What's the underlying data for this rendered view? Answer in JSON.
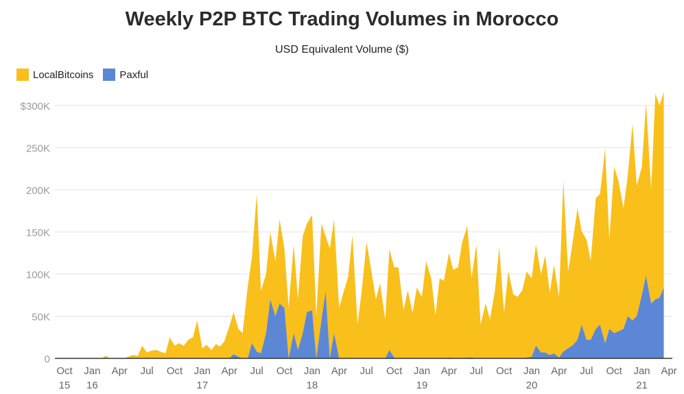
{
  "chart_data": {
    "type": "area",
    "stacked": true,
    "title": "Weekly P2P BTC Trading Volumes in Morocco",
    "subtitle": "USD Equivalent Volume ($)",
    "legend_position": "top-left",
    "grid": true,
    "ylim": [
      0,
      300
    ],
    "y_ticks": [
      {
        "value": 0,
        "label": "0"
      },
      {
        "value": 50,
        "label": "50K"
      },
      {
        "value": 100,
        "label": "100K"
      },
      {
        "value": 150,
        "label": "150K"
      },
      {
        "value": 200,
        "label": "200K"
      },
      {
        "value": 250,
        "label": "250K"
      },
      {
        "value": 300,
        "label": "$300K"
      }
    ],
    "x_ticks": [
      {
        "date": "2015-10-01",
        "label": "Oct",
        "sub": "15"
      },
      {
        "date": "2016-01-01",
        "label": "Jan",
        "sub": "16"
      },
      {
        "date": "2016-04-01",
        "label": "Apr",
        "sub": ""
      },
      {
        "date": "2016-07-01",
        "label": "Jul",
        "sub": ""
      },
      {
        "date": "2016-10-01",
        "label": "Oct",
        "sub": ""
      },
      {
        "date": "2017-01-01",
        "label": "Jan",
        "sub": "17"
      },
      {
        "date": "2017-04-01",
        "label": "Apr",
        "sub": ""
      },
      {
        "date": "2017-07-01",
        "label": "Jul",
        "sub": ""
      },
      {
        "date": "2017-10-01",
        "label": "Oct",
        "sub": ""
      },
      {
        "date": "2018-01-01",
        "label": "Jan",
        "sub": "18"
      },
      {
        "date": "2018-04-01",
        "label": "Apr",
        "sub": ""
      },
      {
        "date": "2018-07-01",
        "label": "Jul",
        "sub": ""
      },
      {
        "date": "2018-10-01",
        "label": "Oct",
        "sub": ""
      },
      {
        "date": "2019-01-01",
        "label": "Jan",
        "sub": "19"
      },
      {
        "date": "2019-04-01",
        "label": "Apr",
        "sub": ""
      },
      {
        "date": "2019-07-01",
        "label": "Jul",
        "sub": ""
      },
      {
        "date": "2019-10-01",
        "label": "Oct",
        "sub": ""
      },
      {
        "date": "2020-01-01",
        "label": "Jan",
        "sub": "20"
      },
      {
        "date": "2020-04-01",
        "label": "Apr",
        "sub": ""
      },
      {
        "date": "2020-07-01",
        "label": "Jul",
        "sub": ""
      },
      {
        "date": "2020-10-01",
        "label": "Oct",
        "sub": ""
      },
      {
        "date": "2021-01-01",
        "label": "Jan",
        "sub": "21"
      },
      {
        "date": "2021-04-01",
        "label": "Apr",
        "sub": ""
      }
    ],
    "x": [
      "2015-10-01",
      "2015-10-15",
      "2015-11-01",
      "2015-11-15",
      "2015-12-01",
      "2015-12-15",
      "2016-01-01",
      "2016-01-15",
      "2016-02-01",
      "2016-02-15",
      "2016-03-01",
      "2016-03-15",
      "2016-04-01",
      "2016-04-15",
      "2016-05-01",
      "2016-05-15",
      "2016-06-01",
      "2016-06-15",
      "2016-07-01",
      "2016-07-15",
      "2016-08-01",
      "2016-08-15",
      "2016-09-01",
      "2016-09-15",
      "2016-10-01",
      "2016-10-15",
      "2016-11-01",
      "2016-11-15",
      "2016-12-01",
      "2016-12-15",
      "2017-01-01",
      "2017-01-15",
      "2017-02-01",
      "2017-02-15",
      "2017-03-01",
      "2017-03-15",
      "2017-04-01",
      "2017-04-15",
      "2017-05-01",
      "2017-05-15",
      "2017-06-01",
      "2017-06-15",
      "2017-07-01",
      "2017-07-15",
      "2017-08-01",
      "2017-08-15",
      "2017-09-01",
      "2017-09-15",
      "2017-10-01",
      "2017-10-15",
      "2017-11-01",
      "2017-11-15",
      "2017-12-01",
      "2017-12-15",
      "2018-01-01",
      "2018-01-15",
      "2018-02-01",
      "2018-02-15",
      "2018-03-01",
      "2018-03-15",
      "2018-04-01",
      "2018-04-15",
      "2018-05-01",
      "2018-05-15",
      "2018-06-01",
      "2018-06-15",
      "2018-07-01",
      "2018-07-15",
      "2018-08-01",
      "2018-08-15",
      "2018-09-01",
      "2018-09-15",
      "2018-10-01",
      "2018-10-15",
      "2018-11-01",
      "2018-11-15",
      "2018-12-01",
      "2018-12-15",
      "2019-01-01",
      "2019-01-15",
      "2019-02-01",
      "2019-02-15",
      "2019-03-01",
      "2019-03-15",
      "2019-04-01",
      "2019-04-15",
      "2019-05-01",
      "2019-05-15",
      "2019-06-01",
      "2019-06-15",
      "2019-07-01",
      "2019-07-15",
      "2019-08-01",
      "2019-08-15",
      "2019-09-01",
      "2019-09-15",
      "2019-10-01",
      "2019-10-15",
      "2019-11-01",
      "2019-11-15",
      "2019-12-01",
      "2019-12-15",
      "2020-01-01",
      "2020-01-15",
      "2020-02-01",
      "2020-02-15",
      "2020-03-01",
      "2020-03-15",
      "2020-04-01",
      "2020-04-15",
      "2020-05-01",
      "2020-05-15",
      "2020-06-01",
      "2020-06-15",
      "2020-07-01",
      "2020-07-15",
      "2020-08-01",
      "2020-08-15",
      "2020-09-01",
      "2020-09-15",
      "2020-10-01",
      "2020-10-15",
      "2020-11-01",
      "2020-11-15",
      "2020-12-01",
      "2020-12-15",
      "2021-01-01",
      "2021-01-15",
      "2021-02-01",
      "2021-02-15",
      "2021-03-01",
      "2021-03-15"
    ],
    "series": [
      {
        "name": "LocalBitcoins",
        "color": "#f9bf1b",
        "values": [
          0,
          0,
          0,
          0,
          0,
          0,
          0,
          0,
          0,
          3,
          0,
          0,
          0,
          0,
          2,
          4,
          3,
          15,
          7,
          9,
          10,
          8,
          6,
          25,
          15,
          18,
          15,
          22,
          25,
          45,
          12,
          16,
          10,
          17,
          14,
          20,
          38,
          50,
          33,
          30,
          85,
          102,
          187,
          74,
          70,
          80,
          65,
          100,
          70,
          60,
          105,
          60,
          115,
          105,
          113,
          50,
          115,
          65,
          130,
          135,
          60,
          78,
          97,
          146,
          40,
          80,
          138,
          108,
          70,
          89,
          46,
          120,
          107,
          108,
          57,
          81,
          54,
          84,
          73,
          115,
          95,
          51,
          95,
          92,
          124,
          105,
          108,
          138,
          156,
          94,
          135,
          40,
          65,
          46,
          81,
          132,
          54,
          103,
          76,
          73,
          81,
          102,
          93,
          120,
          93,
          115,
          74,
          105,
          72,
          203,
          91,
          120,
          156,
          111,
          119,
          94,
          155,
          155,
          231,
          106,
          197,
          179,
          143,
          166,
          233,
          155,
          152,
          205,
          135,
          244,
          228,
          232
        ]
      },
      {
        "name": "Paxful",
        "color": "#5b87d6",
        "values": [
          0,
          0,
          0,
          0,
          0,
          0,
          0,
          0,
          0,
          0,
          0,
          0,
          0,
          0,
          0,
          0,
          0,
          0,
          0,
          0,
          0,
          0,
          0,
          0,
          0,
          0,
          0,
          0,
          0,
          0,
          0,
          0,
          0,
          0,
          0,
          0,
          0,
          5,
          2,
          0,
          0,
          18,
          8,
          6,
          30,
          70,
          50,
          65,
          60,
          0,
          30,
          10,
          30,
          55,
          57,
          0,
          45,
          80,
          0,
          30,
          0,
          0,
          0,
          0,
          0,
          0,
          0,
          0,
          0,
          0,
          0,
          10,
          1,
          0,
          0,
          0,
          0,
          0,
          0,
          0,
          0,
          0,
          0,
          0,
          1,
          0,
          0,
          0,
          1,
          1,
          0,
          0,
          0,
          0,
          0,
          0,
          0,
          0,
          0,
          0,
          0,
          1,
          2,
          15,
          7,
          7,
          4,
          6,
          1,
          8,
          12,
          15,
          22,
          40,
          22,
          22,
          35,
          40,
          18,
          35,
          30,
          32,
          35,
          50,
          45,
          50,
          75,
          98,
          65,
          70,
          72,
          84
        ]
      }
    ]
  }
}
